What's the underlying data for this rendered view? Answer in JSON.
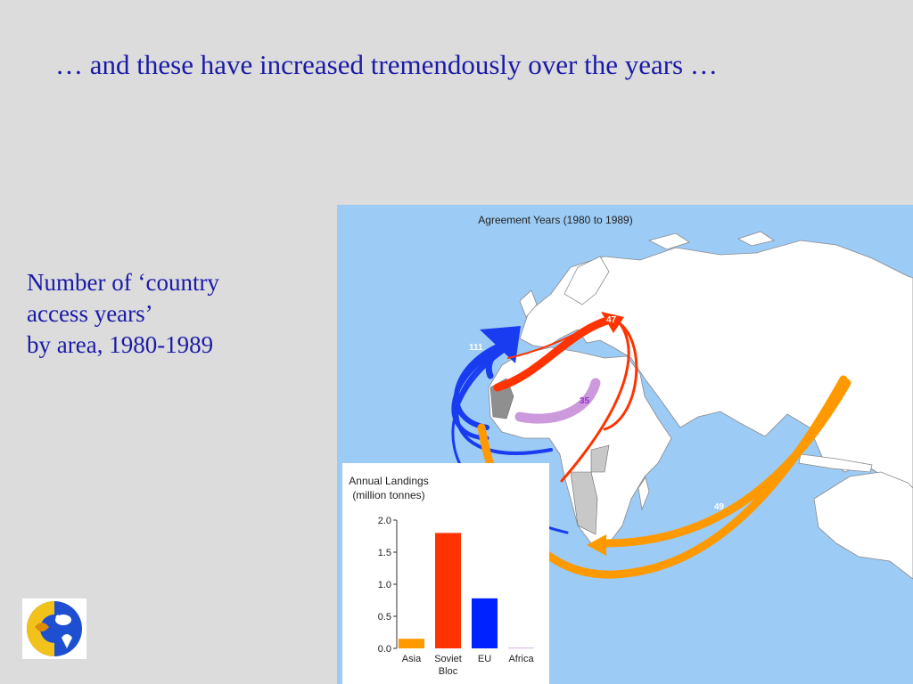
{
  "slide": {
    "title": "… and these have increased tremendously over the years …",
    "caption_lines": [
      "Number of ‘country",
      "access years’",
      "by area, 1980-1989"
    ]
  },
  "map": {
    "title": "Agreement Years (1980 to 1989)",
    "ocean_color": "#9ccbf5",
    "land_color": "#ffffff",
    "flows": [
      {
        "source": "EU",
        "label": "111",
        "color": "#1a3cf0"
      },
      {
        "source": "Soviet Bloc",
        "label": "47",
        "color": "#ff3300"
      },
      {
        "source": "Africa",
        "label": "35",
        "color": "#cc99dd",
        "label_color": "#9933cc"
      },
      {
        "source": "Asia",
        "label": "49",
        "color": "#ff9900"
      }
    ]
  },
  "chart_data": {
    "type": "bar",
    "title": "Annual Landings",
    "subtitle": "(million tonnes)",
    "categories": [
      "Asia",
      "Soviet Bloc",
      "EU",
      "Africa"
    ],
    "category_lines": [
      [
        "Asia"
      ],
      [
        "Soviet",
        "Bloc"
      ],
      [
        "EU"
      ],
      [
        "Africa"
      ]
    ],
    "values": [
      0.15,
      1.8,
      0.78,
      0.01
    ],
    "colors": [
      "#ff9900",
      "#ff3300",
      "#0022ff",
      "#cc99dd"
    ],
    "ylim": [
      0,
      2.0
    ],
    "yticks": [
      0.0,
      0.5,
      1.0,
      1.5,
      2.0
    ],
    "ytick_labels": [
      "0.0",
      "0.5",
      "1.0",
      "1.5",
      "2.0"
    ],
    "grid": false
  }
}
